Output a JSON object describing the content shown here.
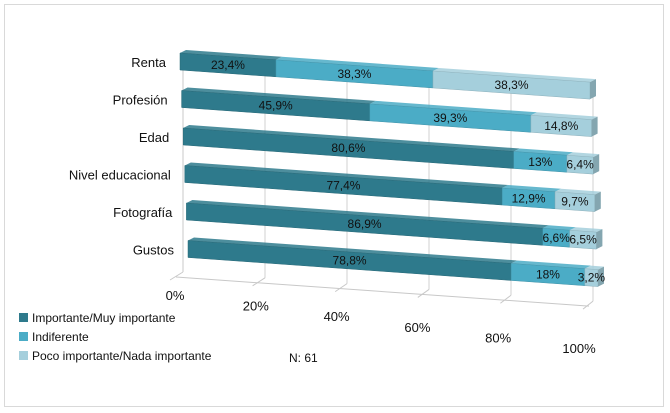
{
  "chart_data": {
    "type": "bar",
    "orientation": "horizontal",
    "stacked": "percent",
    "categories": [
      "Renta",
      "Profesión",
      "Edad",
      "Nivel educacional",
      "Fotografía",
      "Gustos"
    ],
    "series": [
      {
        "name": "Importante/Muy importante",
        "color": "#2E7A8C",
        "values": [
          23.4,
          45.9,
          80.6,
          77.4,
          86.9,
          78.8
        ],
        "labels": [
          "23,4%",
          "45,9%",
          "80,6%",
          "77,4%",
          "86,9%",
          "78,8%"
        ]
      },
      {
        "name": "Indiferente",
        "color": "#4BACC6",
        "values": [
          38.3,
          39.3,
          13,
          12.9,
          6.6,
          18
        ],
        "labels": [
          "38,3%",
          "39,3%",
          "13%",
          "12,9%",
          "6,6%",
          "18%"
        ]
      },
      {
        "name": "Poco importante/Nada importante",
        "color": "#A5CFDC",
        "values": [
          38.3,
          14.8,
          6.4,
          9.7,
          6.5,
          3.2
        ],
        "labels": [
          "38,3%",
          "14,8%",
          "6,4%",
          "9,7%",
          "6,5%",
          "3,2%"
        ]
      }
    ],
    "xlim": [
      0,
      100
    ],
    "xticks": [
      "0%",
      "20%",
      "40%",
      "60%",
      "80%",
      "100%"
    ],
    "grid": true,
    "legend": "bottom-left",
    "note": "N: 61"
  }
}
